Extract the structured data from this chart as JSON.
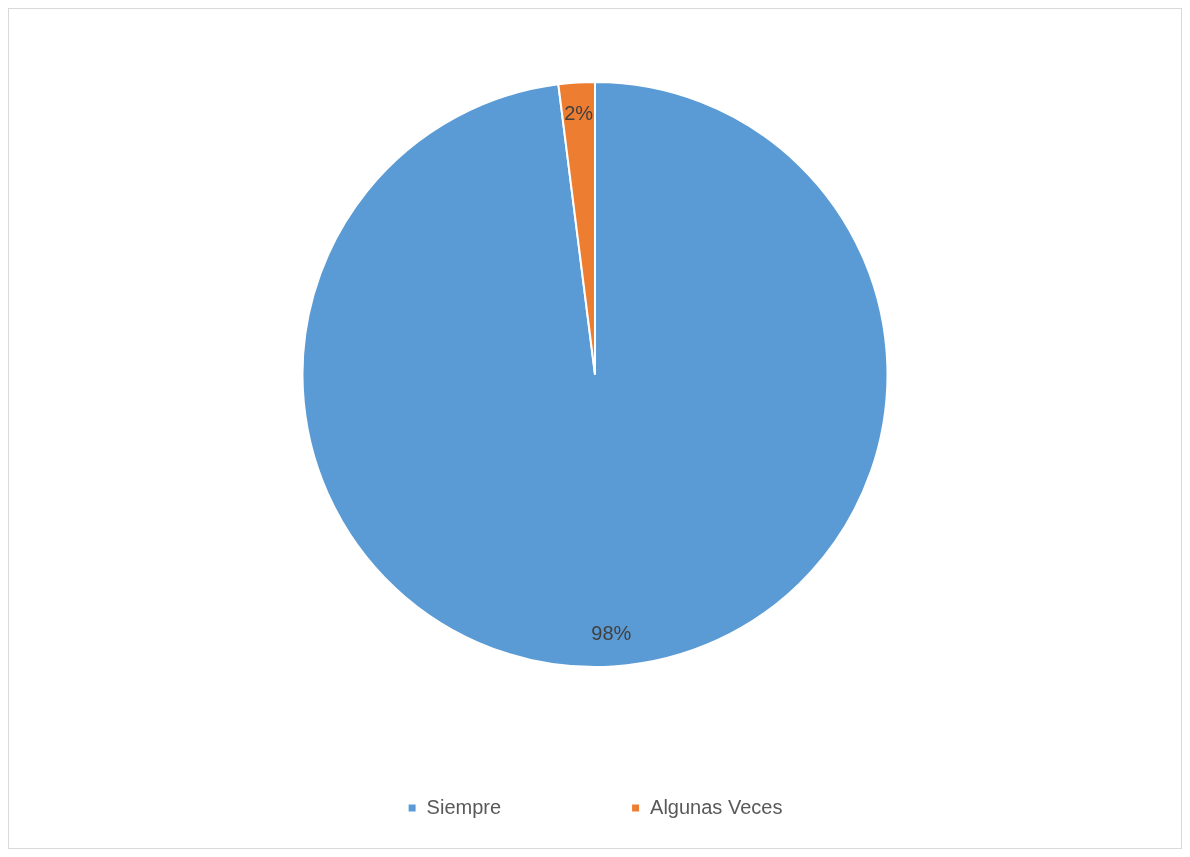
{
  "chart_data": {
    "type": "pie",
    "categories": [
      "Siempre",
      "Algunas Veces"
    ],
    "values": [
      98,
      2
    ],
    "colors": [
      "#5b9bd5",
      "#ed7d31"
    ],
    "value_labels": [
      "98%",
      "2%"
    ],
    "legend": "bottom"
  }
}
